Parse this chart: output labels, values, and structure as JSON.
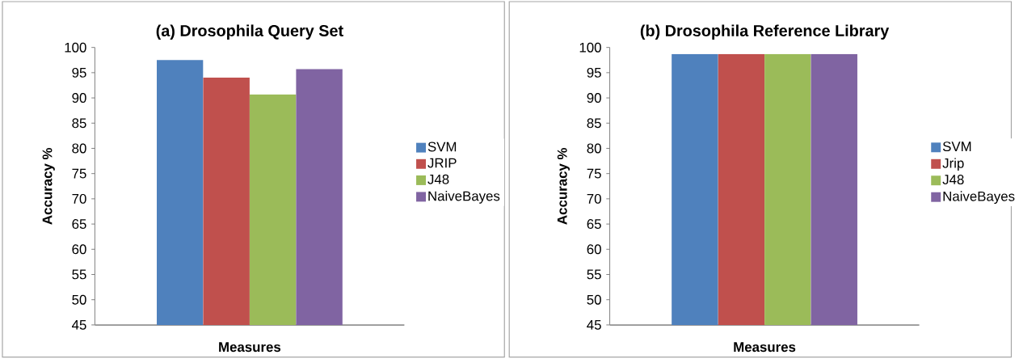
{
  "chart_data": [
    {
      "type": "bar",
      "title": "(a)   Drosophila Query Set",
      "xlabel": "Measures",
      "ylabel": "Accuracy %",
      "categories": [
        null
      ],
      "series": [
        {
          "name": "SVM",
          "color": "#4f81bd",
          "values": [
            97.5
          ]
        },
        {
          "name": "JRIP",
          "color": "#c0504d",
          "values": [
            94
          ]
        },
        {
          "name": "J48",
          "color": "#9bbb59",
          "values": [
            90.7
          ]
        },
        {
          "name": "NaiveBayes",
          "color": "#8064a2",
          "values": [
            95.7
          ]
        }
      ],
      "ylim": [
        45,
        100
      ],
      "yticks": [
        45,
        50,
        55,
        60,
        65,
        70,
        75,
        80,
        85,
        90,
        95,
        100
      ],
      "legend": "right",
      "grid": false
    },
    {
      "type": "bar",
      "title": "(b)   Drosophila Reference Library",
      "xlabel": "Measures",
      "ylabel": "Accuracy %",
      "categories": [
        null
      ],
      "series": [
        {
          "name": "SVM",
          "color": "#4f81bd",
          "values": [
            98.7
          ]
        },
        {
          "name": "Jrip",
          "color": "#c0504d",
          "values": [
            98.7
          ]
        },
        {
          "name": "J48",
          "color": "#9bbb59",
          "values": [
            98.7
          ]
        },
        {
          "name": "NaiveBayes",
          "color": "#8064a2",
          "values": [
            98.7
          ]
        }
      ],
      "ylim": [
        45,
        100
      ],
      "yticks": [
        45,
        50,
        55,
        60,
        65,
        70,
        75,
        80,
        85,
        90,
        95,
        100
      ],
      "legend": "right",
      "grid": false
    }
  ]
}
